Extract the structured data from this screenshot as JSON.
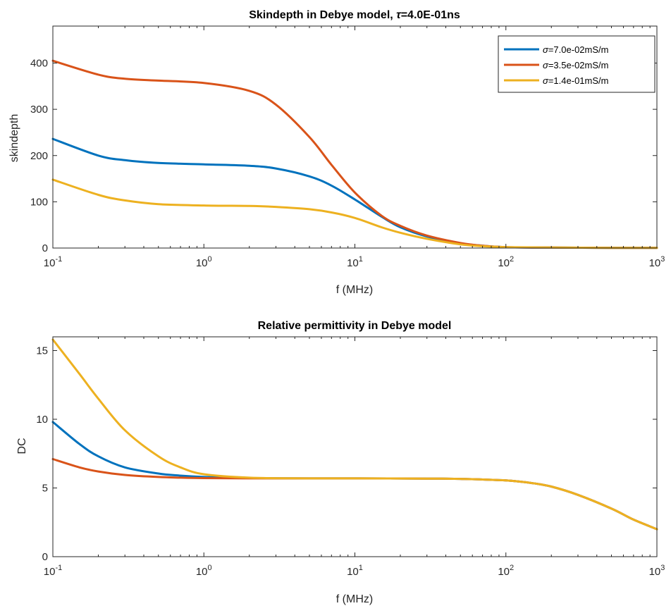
{
  "chart_data": [
    {
      "type": "line",
      "title_prefix": "Skindepth in Debye model, ",
      "title_symbol": "τ",
      "title_suffix": "=4.0E-01ns",
      "xlabel": "f (MHz)",
      "ylabel": "skindepth",
      "xscale": "log",
      "xlim": [
        0.1,
        1000
      ],
      "ylim": [
        0,
        480
      ],
      "xticks": [
        {
          "base": "10",
          "exp": "-1"
        },
        {
          "base": "10",
          "exp": "0"
        },
        {
          "base": "10",
          "exp": "1"
        },
        {
          "base": "10",
          "exp": "2"
        },
        {
          "base": "10",
          "exp": "3"
        }
      ],
      "yticks": [
        "0",
        "100",
        "200",
        "300",
        "400"
      ],
      "ytick_values": [
        0,
        100,
        200,
        300,
        400
      ],
      "legend_position": "top-right",
      "x": [
        0.1,
        0.2,
        0.3,
        0.5,
        1,
        2,
        3,
        5,
        7,
        10,
        15,
        20,
        30,
        50,
        70,
        100,
        200,
        500,
        1000
      ],
      "series": [
        {
          "name": "=7.0e-02mS/m",
          "symbol": "σ",
          "color": "#0072BD",
          "values": [
            236,
            200,
            190,
            184,
            181,
            178,
            172,
            155,
            135,
            105,
            68,
            45,
            25,
            10,
            5,
            2,
            1,
            0.5,
            0.3
          ]
        },
        {
          "name": "=3.5e-02mS/m",
          "symbol": "σ",
          "color": "#D95319",
          "values": [
            405,
            375,
            366,
            362,
            357,
            340,
            310,
            240,
            180,
            120,
            70,
            48,
            27,
            11,
            5,
            2,
            1,
            0.5,
            0.3
          ]
        },
        {
          "name": "=1.4e-01mS/m",
          "symbol": "σ",
          "color": "#EDB120",
          "values": [
            148,
            115,
            103,
            95,
            92,
            91,
            89,
            84,
            77,
            65,
            45,
            33,
            20,
            8,
            4,
            2,
            1,
            0.5,
            0.3
          ]
        }
      ]
    },
    {
      "type": "line",
      "title": "Relative permittivity in Debye model",
      "xlabel": "f (MHz)",
      "ylabel": "DC",
      "xscale": "log",
      "xlim": [
        0.1,
        1000
      ],
      "ylim": [
        0,
        16
      ],
      "xticks": [
        {
          "base": "10",
          "exp": "-1"
        },
        {
          "base": "10",
          "exp": "0"
        },
        {
          "base": "10",
          "exp": "1"
        },
        {
          "base": "10",
          "exp": "2"
        },
        {
          "base": "10",
          "exp": "3"
        }
      ],
      "yticks": [
        "0",
        "5",
        "10",
        "15"
      ],
      "ytick_values": [
        0,
        5,
        10,
        15
      ],
      "x": [
        0.1,
        0.15,
        0.2,
        0.3,
        0.5,
        0.7,
        1,
        2,
        5,
        10,
        30,
        50,
        100,
        150,
        200,
        300,
        500,
        700,
        1000
      ],
      "series": [
        {
          "color": "#0072BD",
          "values": [
            9.8,
            8.2,
            7.3,
            6.5,
            6.05,
            5.9,
            5.8,
            5.72,
            5.7,
            5.7,
            5.68,
            5.66,
            5.55,
            5.35,
            5.1,
            4.5,
            3.5,
            2.7,
            2.0
          ]
        },
        {
          "color": "#D95319",
          "values": [
            7.1,
            6.5,
            6.2,
            5.95,
            5.8,
            5.75,
            5.72,
            5.7,
            5.7,
            5.7,
            5.68,
            5.66,
            5.55,
            5.35,
            5.1,
            4.5,
            3.5,
            2.7,
            2.0
          ]
        },
        {
          "color": "#EDB120",
          "values": [
            15.8,
            13.3,
            11.5,
            9.2,
            7.3,
            6.5,
            6.0,
            5.75,
            5.7,
            5.7,
            5.68,
            5.66,
            5.55,
            5.35,
            5.1,
            4.5,
            3.5,
            2.7,
            2.0
          ]
        }
      ]
    }
  ]
}
